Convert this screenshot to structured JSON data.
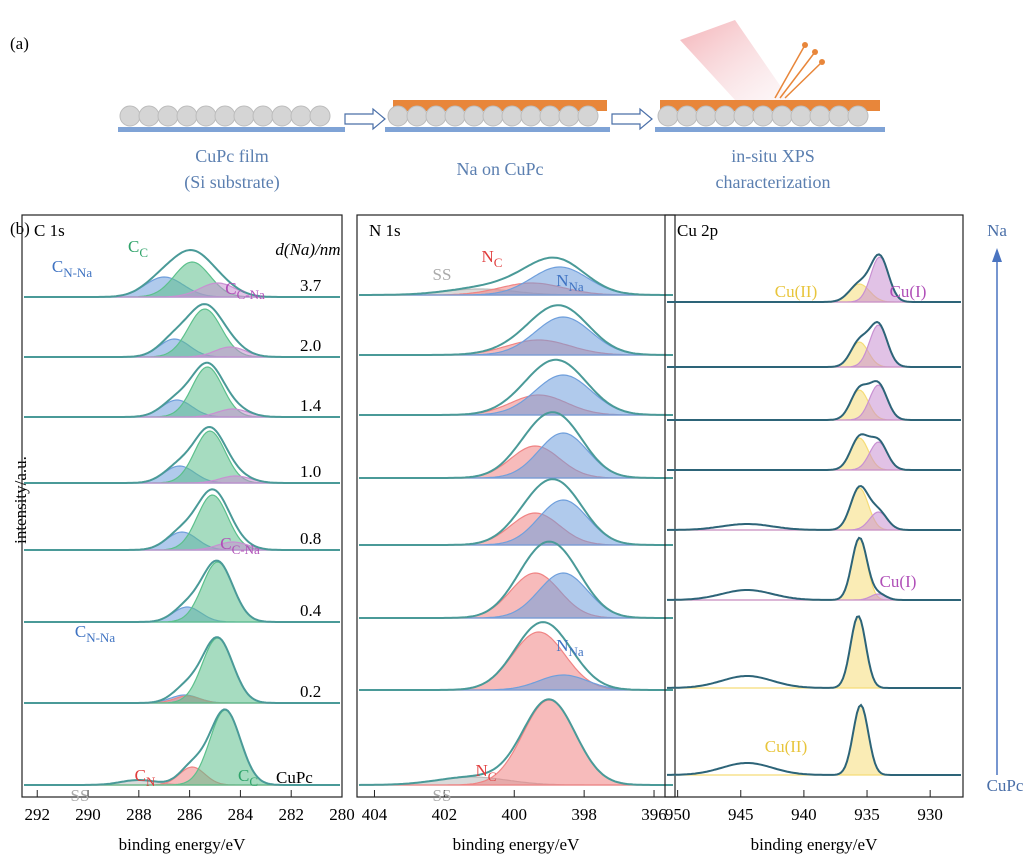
{
  "figure": {
    "panel_a_label": "(a)",
    "panel_b_label": "(b)",
    "y_label": "intensity/a.u.",
    "arrow_top": "Na",
    "arrow_bottom": "CuPc"
  },
  "schematic": {
    "captions": [
      [
        "CuPc film",
        "(Si substrate)"
      ],
      [
        "Na on CuPc"
      ],
      [
        "in-situ XPS",
        "characterization"
      ]
    ]
  },
  "chart_data": [
    {
      "type": "area",
      "title": "C 1s",
      "x_label": "binding energy/eV",
      "xlim": [
        292.6,
        280
      ],
      "xticks": [
        292,
        290,
        288,
        286,
        284,
        282,
        280
      ],
      "legend_title": "d(Na)/nm",
      "spectra": [
        {
          "label": "3.7",
          "components": [
            {
              "center": 287.0,
              "height": 20,
              "width": 0.75,
              "color": "#6f9fdc"
            },
            {
              "center": 285.9,
              "height": 35,
              "width": 0.7,
              "color": "#5cc08c"
            },
            {
              "center": 284.9,
              "height": 14,
              "width": 0.7,
              "color": "#c890d2"
            }
          ]
        },
        {
          "label": "2.0",
          "components": [
            {
              "center": 286.6,
              "height": 18,
              "width": 0.6,
              "color": "#6f9fdc"
            },
            {
              "center": 285.4,
              "height": 48,
              "width": 0.65,
              "color": "#5cc08c"
            },
            {
              "center": 284.4,
              "height": 10,
              "width": 0.6,
              "color": "#c890d2"
            }
          ]
        },
        {
          "label": "1.4",
          "components": [
            {
              "center": 286.5,
              "height": 17,
              "width": 0.6,
              "color": "#6f9fdc"
            },
            {
              "center": 285.3,
              "height": 50,
              "width": 0.6,
              "color": "#5cc08c"
            },
            {
              "center": 284.3,
              "height": 8,
              "width": 0.6,
              "color": "#c890d2"
            }
          ]
        },
        {
          "label": "1.0",
          "components": [
            {
              "center": 286.4,
              "height": 17,
              "width": 0.6,
              "color": "#6f9fdc"
            },
            {
              "center": 285.2,
              "height": 52,
              "width": 0.6,
              "color": "#5cc08c"
            },
            {
              "center": 284.2,
              "height": 7,
              "width": 0.6,
              "color": "#c890d2"
            }
          ]
        },
        {
          "label": "0.8",
          "components": [
            {
              "center": 286.3,
              "height": 18,
              "width": 0.6,
              "color": "#6f9fdc"
            },
            {
              "center": 285.1,
              "height": 55,
              "width": 0.6,
              "color": "#5cc08c"
            },
            {
              "center": 284.3,
              "height": 8,
              "width": 0.6,
              "color": "#c890d2"
            }
          ]
        },
        {
          "label": "0.4",
          "components": [
            {
              "center": 286.1,
              "height": 15,
              "width": 0.55,
              "color": "#6f9fdc"
            },
            {
              "center": 284.9,
              "height": 60,
              "width": 0.6,
              "color": "#5cc08c"
            }
          ]
        },
        {
          "label": "0.2",
          "components": [
            {
              "center": 286.2,
              "height": 8,
              "width": 0.55,
              "color": "#6f9fdc"
            },
            {
              "center": 286.1,
              "height": 7,
              "width": 0.5,
              "color": "#f08484"
            },
            {
              "center": 284.9,
              "height": 65,
              "width": 0.6,
              "color": "#5cc08c"
            }
          ]
        },
        {
          "label": "CuPc",
          "components": [
            {
              "center": 288.0,
              "height": 5,
              "width": 0.7,
              "color": "#bbbbbb"
            },
            {
              "center": 285.9,
              "height": 18,
              "width": 0.5,
              "color": "#f08484"
            },
            {
              "center": 284.6,
              "height": 75,
              "width": 0.6,
              "color": "#5cc08c"
            }
          ]
        }
      ],
      "annotations": [
        {
          "text": "C",
          "sub": "N-Na",
          "color": "#3f73c2"
        },
        {
          "text": "C",
          "sub": "C",
          "color": "#2fa36a"
        },
        {
          "text": "C",
          "sub": "C-Na",
          "color": "#b04fb8"
        },
        {
          "text": "C",
          "sub": "C-Na",
          "color": "#b04fb8"
        },
        {
          "text": "C",
          "sub": "N-Na",
          "color": "#3f73c2"
        },
        {
          "text": "C",
          "sub": "N",
          "color": "#e03c3c"
        },
        {
          "text": "C",
          "sub": "C",
          "color": "#2fa36a"
        },
        {
          "text": "SS",
          "color": "#aaaaaa"
        }
      ]
    },
    {
      "type": "area",
      "title": "N 1s",
      "x_label": "binding energy/eV",
      "xlim": [
        404.5,
        395.4
      ],
      "xticks": [
        404,
        402,
        400,
        398,
        396
      ],
      "spectra": [
        {
          "components": [
            {
              "center": 401,
              "height": 6,
              "width": 1,
              "color": "#bbbbbb"
            },
            {
              "center": 399.5,
              "height": 12,
              "width": 0.9,
              "color": "#f08484"
            },
            {
              "center": 398.7,
              "height": 28,
              "width": 0.8,
              "color": "#6f9fdc"
            }
          ]
        },
        {
          "components": [
            {
              "center": 399.3,
              "height": 15,
              "width": 0.9,
              "color": "#f08484"
            },
            {
              "center": 398.6,
              "height": 38,
              "width": 0.8,
              "color": "#6f9fdc"
            }
          ]
        },
        {
          "components": [
            {
              "center": 399.3,
              "height": 20,
              "width": 0.8,
              "color": "#f08484"
            },
            {
              "center": 398.6,
              "height": 40,
              "width": 0.8,
              "color": "#6f9fdc"
            }
          ]
        },
        {
          "components": [
            {
              "center": 399.4,
              "height": 32,
              "width": 0.7,
              "color": "#f08484"
            },
            {
              "center": 398.6,
              "height": 45,
              "width": 0.7,
              "color": "#6f9fdc"
            }
          ]
        },
        {
          "components": [
            {
              "center": 399.4,
              "height": 32,
              "width": 0.7,
              "color": "#f08484"
            },
            {
              "center": 398.6,
              "height": 45,
              "width": 0.7,
              "color": "#6f9fdc"
            }
          ]
        },
        {
          "components": [
            {
              "center": 399.4,
              "height": 45,
              "width": 0.7,
              "color": "#f08484"
            },
            {
              "center": 398.6,
              "height": 45,
              "width": 0.7,
              "color": "#6f9fdc"
            }
          ]
        },
        {
          "components": [
            {
              "center": 399.3,
              "height": 58,
              "width": 0.75,
              "color": "#f08484"
            },
            {
              "center": 398.6,
              "height": 15,
              "width": 0.7,
              "color": "#6f9fdc"
            }
          ]
        },
        {
          "components": [
            {
              "center": 401.2,
              "height": 8,
              "width": 1,
              "color": "#bbbbbb"
            },
            {
              "center": 399.0,
              "height": 85,
              "width": 0.75,
              "color": "#f08484"
            }
          ]
        }
      ],
      "annotations": [
        {
          "text": "SS",
          "color": "#aaaaaa"
        },
        {
          "text": "N",
          "sub": "C",
          "color": "#e03c3c"
        },
        {
          "text": "N",
          "sub": "Na",
          "color": "#3f73c2"
        },
        {
          "text": "N",
          "sub": "Na",
          "color": "#3f73c2"
        },
        {
          "text": "N",
          "sub": "C",
          "color": "#e03c3c"
        },
        {
          "text": "SS",
          "color": "#aaaaaa"
        }
      ]
    },
    {
      "type": "area",
      "title": "Cu 2p",
      "x_label": "binding energy/eV",
      "xlim": [
        951,
        927.4
      ],
      "xticks": [
        950,
        945,
        940,
        935,
        930
      ],
      "spectra": [
        {
          "components": [
            {
              "center": 935.6,
              "height": 18,
              "width": 0.8,
              "color": "#f5dc78"
            },
            {
              "center": 934,
              "height": 45,
              "width": 0.7,
              "color": "#c890d2"
            }
          ]
        },
        {
          "components": [
            {
              "center": 935.6,
              "height": 25,
              "width": 0.7,
              "color": "#f5dc78"
            },
            {
              "center": 934.1,
              "height": 42,
              "width": 0.7,
              "color": "#c890d2"
            }
          ]
        },
        {
          "components": [
            {
              "center": 935.6,
              "height": 30,
              "width": 0.7,
              "color": "#f5dc78"
            },
            {
              "center": 934.1,
              "height": 35,
              "width": 0.7,
              "color": "#c890d2"
            }
          ]
        },
        {
          "components": [
            {
              "center": 935.6,
              "height": 32,
              "width": 0.7,
              "color": "#f5dc78"
            },
            {
              "center": 934.1,
              "height": 28,
              "width": 0.7,
              "color": "#c890d2"
            }
          ]
        },
        {
          "components": [
            {
              "center": 935.6,
              "height": 42,
              "width": 0.7,
              "color": "#f5dc78"
            },
            {
              "center": 934.1,
              "height": 18,
              "width": 0.7,
              "color": "#c890d2"
            },
            {
              "center": 944.5,
              "height": 6,
              "width": 2,
              "color": "none"
            }
          ]
        },
        {
          "components": [
            {
              "center": 935.6,
              "height": 62,
              "width": 0.6,
              "color": "#f5dc78"
            },
            {
              "center": 934.1,
              "height": 6,
              "width": 0.6,
              "color": "#c890d2"
            },
            {
              "center": 944.5,
              "height": 10,
              "width": 2,
              "color": "none"
            }
          ]
        },
        {
          "components": [
            {
              "center": 935.7,
              "height": 72,
              "width": 0.6,
              "color": "#f5dc78"
            },
            {
              "center": 944.5,
              "height": 12,
              "width": 2,
              "color": "none"
            }
          ]
        },
        {
          "components": [
            {
              "center": 935.5,
              "height": 70,
              "width": 0.6,
              "color": "#f5dc78"
            },
            {
              "center": 944.5,
              "height": 12,
              "width": 2,
              "color": "none"
            }
          ]
        }
      ],
      "annotations": [
        {
          "text": "Cu(II)",
          "color": "#e8c53c"
        },
        {
          "text": "Cu(I)",
          "color": "#b04fb8"
        },
        {
          "text": "Cu(I)",
          "color": "#b04fb8"
        },
        {
          "text": "Cu(II)",
          "color": "#e8c53c"
        }
      ]
    }
  ]
}
